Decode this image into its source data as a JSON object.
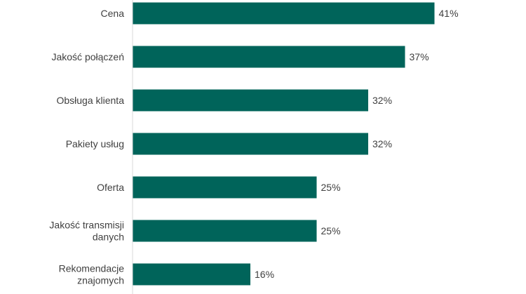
{
  "chart_data": {
    "type": "bar",
    "orientation": "horizontal",
    "categories": [
      "Cena",
      "Jakość połączeń",
      "Obsługa klienta",
      "Pakiety usług",
      "Oferta",
      "Jakość transmisji danych",
      "Rekomendacje znajomych"
    ],
    "category_lines": [
      [
        "Cena"
      ],
      [
        "Jakość połączeń"
      ],
      [
        "Obsługa klienta"
      ],
      [
        "Pakiety usług"
      ],
      [
        "Oferta"
      ],
      [
        "Jakość transmisji",
        "danych"
      ],
      [
        "Rekomendacje",
        "znajomych"
      ]
    ],
    "values": [
      41,
      37,
      32,
      32,
      25,
      25,
      16
    ],
    "value_labels": [
      "41%",
      "37%",
      "32%",
      "32%",
      "25%",
      "25%",
      "16%"
    ],
    "unit": "%",
    "xlim": [
      0,
      50
    ],
    "grid": false,
    "legend": "none",
    "bar_color": "#00645a",
    "text_color": "#404040",
    "axis_color": "#d9d9d9"
  }
}
